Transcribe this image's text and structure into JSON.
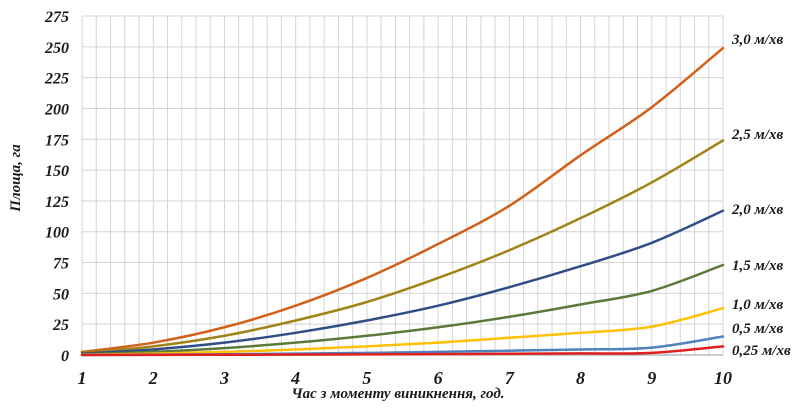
{
  "chart_data": {
    "type": "line",
    "title": "",
    "xlabel": "Час з моменту виникнення, год.",
    "ylabel": "Площа, га",
    "xlim": [
      1,
      10
    ],
    "ylim": [
      0,
      275
    ],
    "x_ticks": [
      1,
      2,
      3,
      4,
      5,
      6,
      7,
      8,
      9,
      10
    ],
    "y_ticks": [
      0,
      25,
      50,
      75,
      100,
      125,
      150,
      175,
      200,
      225,
      250,
      275
    ],
    "grid": true,
    "x": [
      1,
      2,
      3,
      4,
      5,
      6,
      7,
      8,
      9,
      10
    ],
    "series": [
      {
        "name": "3,0 м/хв",
        "color": "#D2601A",
        "values": [
          2.5,
          10,
          22.5,
          40,
          62.5,
          90,
          121,
          162,
          201,
          249
        ]
      },
      {
        "name": "2,5 м/хв",
        "color": "#A08418",
        "values": [
          1.7,
          7,
          15.6,
          28,
          43,
          62.5,
          85,
          111,
          140,
          174
        ]
      },
      {
        "name": "2,0 м/хв",
        "color": "#2F4E86",
        "values": [
          1.1,
          4.5,
          10,
          18,
          28,
          40,
          55,
          72,
          91,
          117
        ]
      },
      {
        "name": "1,5 м/хв",
        "color": "#5A7A3A",
        "values": [
          0.6,
          2.5,
          5.6,
          10,
          15.6,
          22.5,
          31,
          41,
          52,
          73
        ]
      },
      {
        "name": "1,0 м/хв",
        "color": "#FFC000",
        "values": [
          0.3,
          1.1,
          2.5,
          4.5,
          7,
          10,
          14,
          18,
          23,
          38
        ]
      },
      {
        "name": "0,5 м/хв",
        "color": "#4F81BD",
        "values": [
          0.1,
          0.3,
          0.6,
          1.1,
          1.7,
          2.5,
          3.5,
          4.5,
          6,
          15
        ]
      },
      {
        "name": "0,25 м/хв",
        "color": "#E02020",
        "values": [
          0.05,
          0.1,
          0.2,
          0.3,
          0.5,
          0.7,
          1,
          1.3,
          1.7,
          7
        ]
      }
    ]
  }
}
